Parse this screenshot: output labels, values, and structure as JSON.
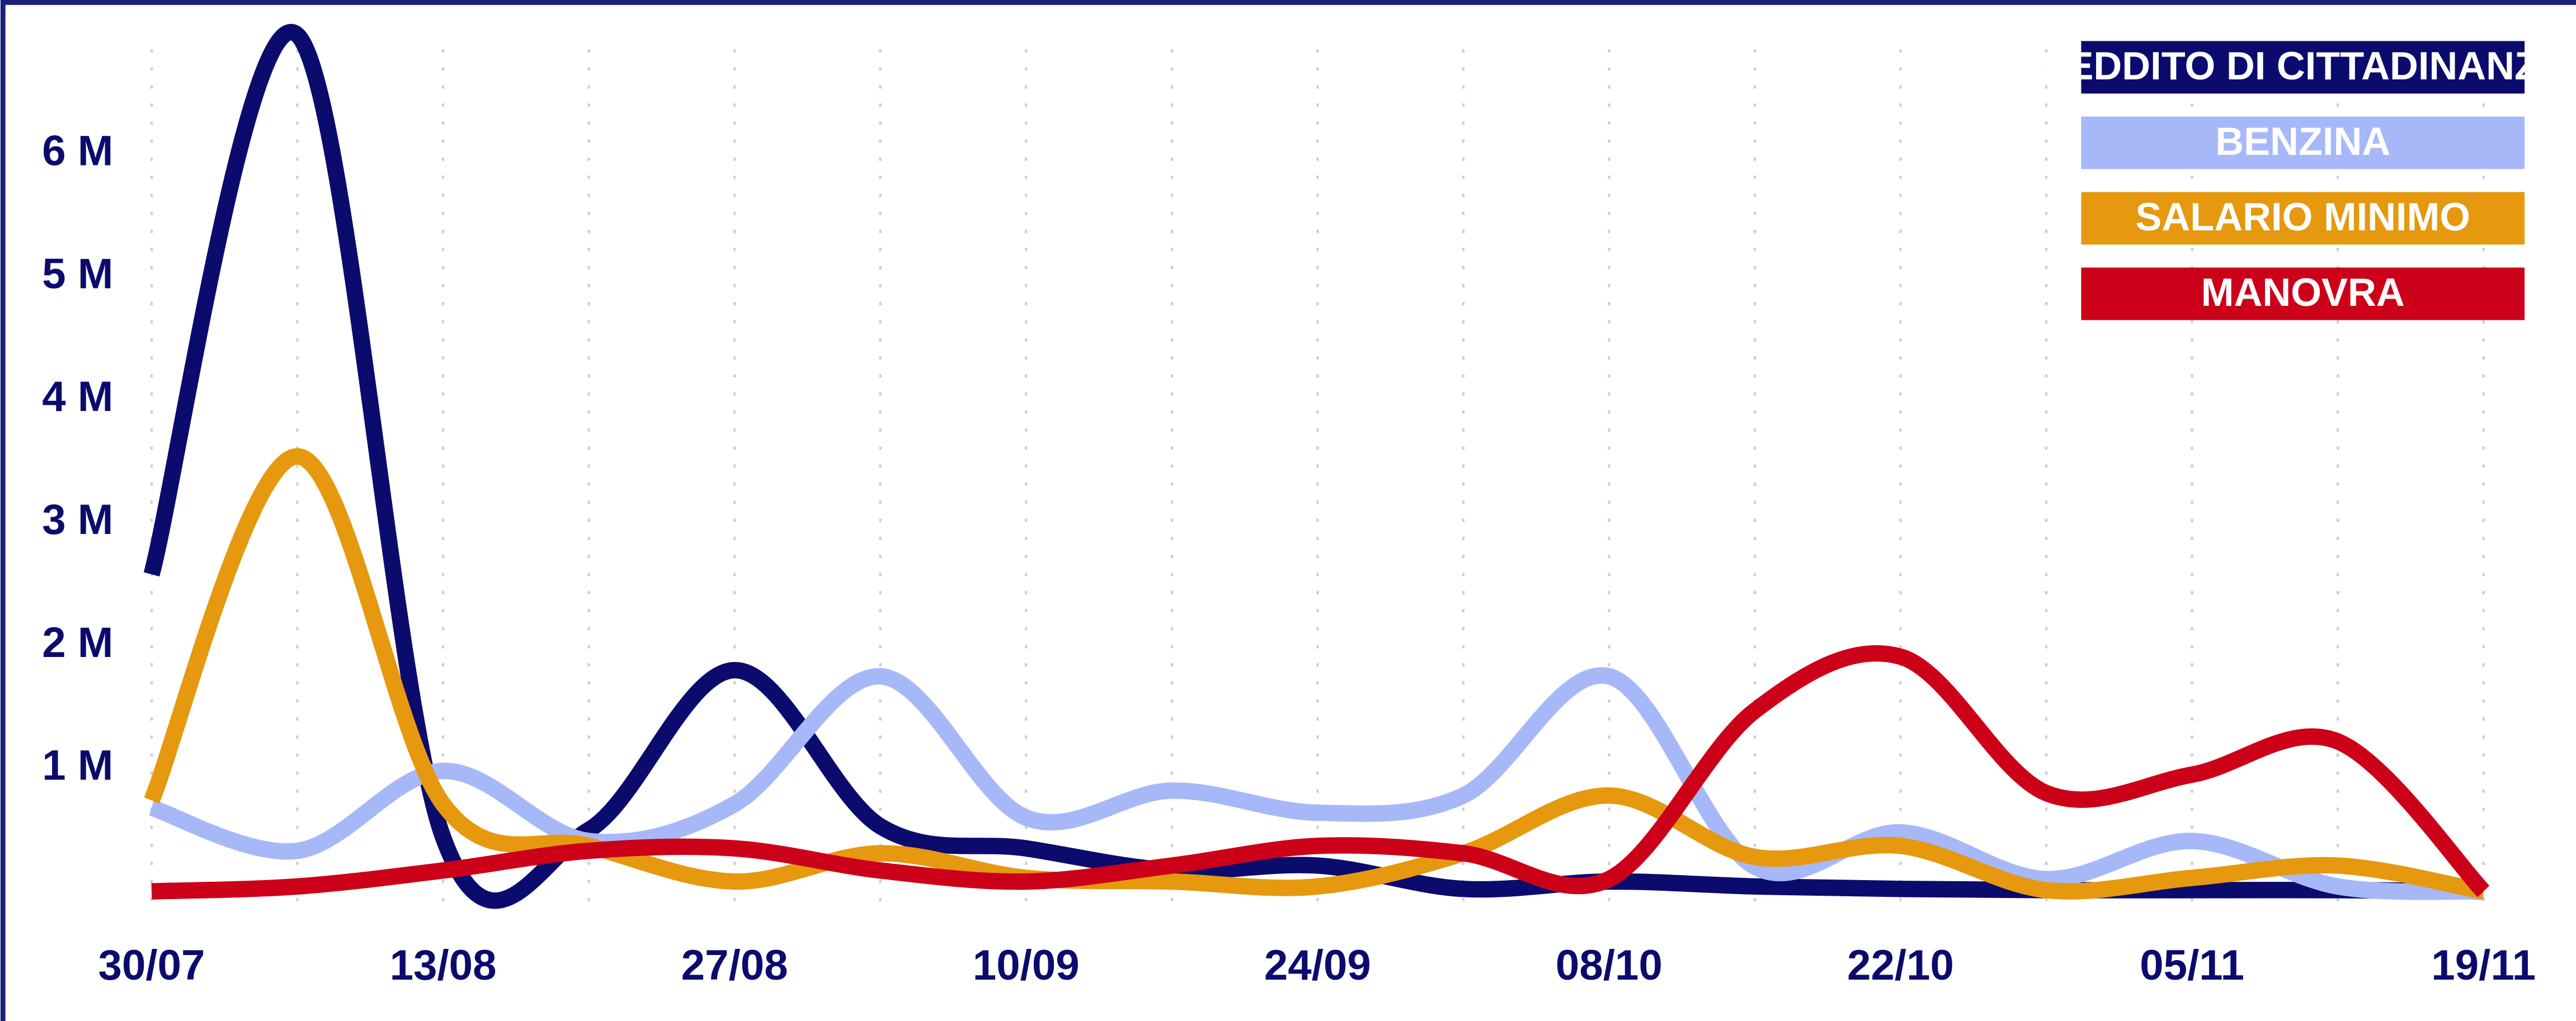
{
  "chart_data": {
    "type": "line",
    "categories": [
      "30/07",
      null,
      "13/08",
      null,
      "27/08",
      null,
      "10/09",
      null,
      "24/09",
      null,
      "08/10",
      null,
      "22/10",
      null,
      "05/11",
      null,
      "19/11"
    ],
    "series": [
      {
        "name": "REDDITO DI CITTADINANZA",
        "color": "#0b0b6e",
        "values": [
          2580000,
          6970000,
          440000,
          500000,
          1800000,
          530000,
          350000,
          170000,
          210000,
          20000,
          80000,
          40000,
          20000,
          10000,
          10000,
          10000,
          0
        ]
      },
      {
        "name": "BENZINA",
        "color": "#a6b8f8",
        "values": [
          680000,
          330000,
          980000,
          410000,
          710000,
          1750000,
          600000,
          820000,
          640000,
          780000,
          1750000,
          200000,
          480000,
          100000,
          410000,
          40000,
          0
        ]
      },
      {
        "name": "SALARIO MINIMO",
        "color": "#e6980e",
        "values": [
          740000,
          3540000,
          710000,
          370000,
          80000,
          310000,
          110000,
          80000,
          40000,
          310000,
          780000,
          280000,
          370000,
          10000,
          110000,
          210000,
          0
        ]
      },
      {
        "name": "MANOVRA",
        "color": "#cc0018",
        "values": [
          0,
          40000,
          170000,
          330000,
          350000,
          170000,
          80000,
          210000,
          370000,
          310000,
          100000,
          1470000,
          1910000,
          800000,
          950000,
          1220000,
          0
        ]
      }
    ],
    "ylim": [
      -200000,
      7000000
    ],
    "yticks": [
      {
        "value": 1000000,
        "label": "1 M"
      },
      {
        "value": 2000000,
        "label": "2 M"
      },
      {
        "value": 3000000,
        "label": "3 M"
      },
      {
        "value": 4000000,
        "label": "4 M"
      },
      {
        "value": 5000000,
        "label": "5 M"
      },
      {
        "value": 6000000,
        "label": "6 M"
      }
    ],
    "grid": true,
    "legend": "top-right"
  }
}
